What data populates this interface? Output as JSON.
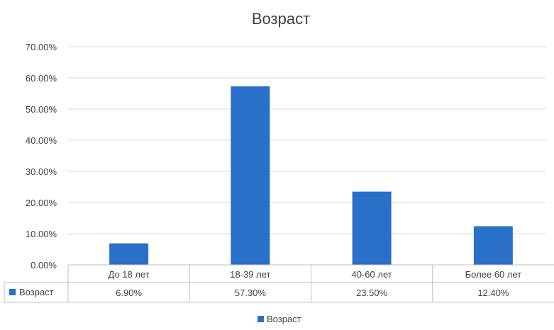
{
  "chart_data": {
    "type": "bar",
    "title": "Возраст",
    "categories": [
      "До 18 лет",
      "18-39 лет",
      "40-60 лет",
      "Более 60 лет"
    ],
    "series": [
      {
        "name": "Возраст",
        "values": [
          6.9,
          57.3,
          23.5,
          12.4
        ],
        "color": "#2870C8"
      }
    ],
    "value_labels": [
      "6.90%",
      "57.30%",
      "23.50%",
      "12.40%"
    ],
    "ylim": [
      0,
      70
    ],
    "yticks": [
      0,
      10,
      20,
      30,
      40,
      50,
      60,
      70
    ],
    "ytick_labels": [
      "0.00%",
      "10.00%",
      "20.00%",
      "30.00%",
      "40.00%",
      "50.00%",
      "60.00%",
      "70.00%"
    ],
    "grid": true,
    "data_table": true,
    "legend": {
      "position": "bottom",
      "label": "Возраст"
    }
  }
}
